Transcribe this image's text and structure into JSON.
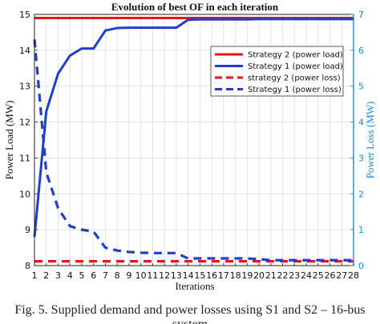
{
  "chart_data": {
    "type": "line",
    "title": "Evolution of best OF in each iteration",
    "xlabel": "Iterations",
    "ylabel_left": "Power Load (MW)",
    "ylabel_right": "Power Loss (MW)",
    "xlim": [
      1,
      28
    ],
    "ylim_left": [
      8,
      15
    ],
    "ylim_right": [
      0,
      7
    ],
    "x": [
      1,
      2,
      3,
      4,
      5,
      6,
      7,
      8,
      9,
      10,
      11,
      12,
      13,
      14,
      15,
      16,
      17,
      18,
      19,
      20,
      21,
      22,
      23,
      24,
      25,
      26,
      27,
      28
    ],
    "x_ticks": [
      1,
      2,
      3,
      4,
      5,
      6,
      7,
      8,
      9,
      10,
      11,
      12,
      13,
      14,
      15,
      16,
      17,
      18,
      19,
      20,
      21,
      22,
      23,
      24,
      25,
      26,
      27,
      28
    ],
    "y_ticks_left": [
      8,
      9,
      10,
      11,
      12,
      13,
      14,
      15
    ],
    "y_ticks_right": [
      0,
      1,
      2,
      3,
      4,
      5,
      6,
      7
    ],
    "grid": true,
    "legend_position": "right",
    "series": [
      {
        "name": "Strategy 2 (power load)",
        "axis": "left",
        "color": "#e8141b",
        "style": "solid",
        "values": [
          14.9,
          14.9,
          14.9,
          14.9,
          14.9,
          14.9,
          14.9,
          14.9,
          14.9,
          14.9,
          14.9,
          14.9,
          14.9,
          14.9,
          14.9,
          14.9,
          14.9,
          14.9,
          14.9,
          14.9,
          14.9,
          14.9,
          14.9,
          14.9,
          14.9,
          14.9,
          14.9,
          14.9
        ]
      },
      {
        "name": "Strategy 1 (power load)",
        "axis": "left",
        "color": "#1f3fc9",
        "style": "solid",
        "values": [
          8.8,
          12.3,
          13.35,
          13.85,
          14.05,
          14.05,
          14.55,
          14.62,
          14.63,
          14.63,
          14.63,
          14.63,
          14.63,
          14.85,
          14.86,
          14.86,
          14.86,
          14.86,
          14.86,
          14.87,
          14.87,
          14.87,
          14.87,
          14.87,
          14.87,
          14.87,
          14.87,
          14.87
        ]
      },
      {
        "name": "strategy 2 (power loss)",
        "axis": "right",
        "color": "#e8141b",
        "style": "dashed",
        "values": [
          0.12,
          0.12,
          0.12,
          0.12,
          0.12,
          0.12,
          0.12,
          0.12,
          0.12,
          0.12,
          0.12,
          0.12,
          0.12,
          0.12,
          0.12,
          0.12,
          0.12,
          0.12,
          0.12,
          0.12,
          0.12,
          0.12,
          0.12,
          0.12,
          0.12,
          0.12,
          0.12,
          0.12
        ]
      },
      {
        "name": "Strategy 1 (power loss)",
        "axis": "right",
        "color": "#1f3fc9",
        "style": "dashed",
        "values": [
          6.3,
          2.6,
          1.6,
          1.1,
          1.0,
          0.95,
          0.5,
          0.42,
          0.38,
          0.36,
          0.35,
          0.35,
          0.35,
          0.2,
          0.2,
          0.2,
          0.2,
          0.2,
          0.2,
          0.18,
          0.15,
          0.15,
          0.15,
          0.15,
          0.15,
          0.15,
          0.15,
          0.15
        ]
      }
    ]
  },
  "caption": "Fig. 5. Supplied demand and power losses using S1 and S2 – 16-bus",
  "caption_cont": "system"
}
